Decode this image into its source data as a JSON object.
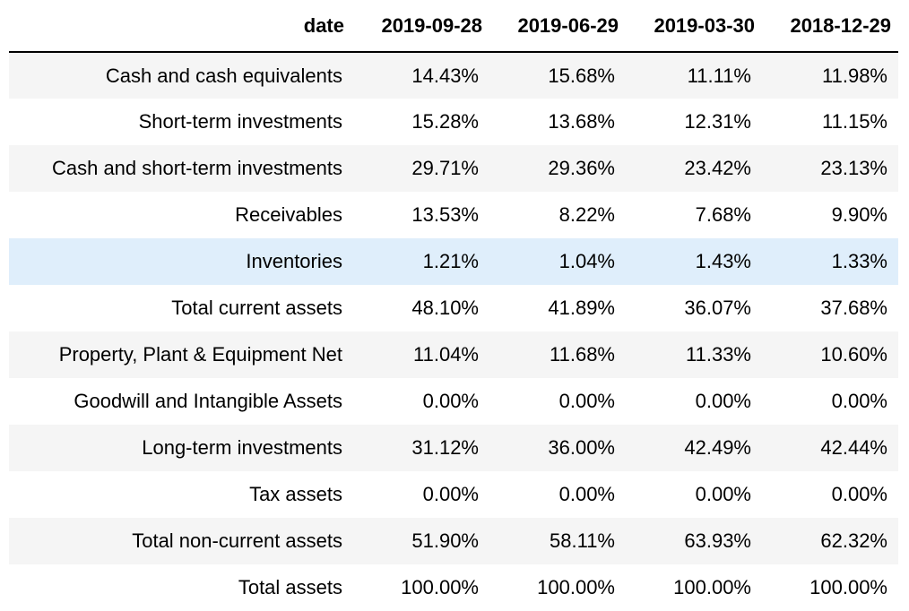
{
  "table": {
    "header": [
      "date",
      "2019-09-28",
      "2019-06-29",
      "2019-03-30",
      "2018-12-29"
    ],
    "highlight_color": "#dfeefb",
    "stripe_color": "#f5f5f5",
    "rows": [
      {
        "label": "Cash and cash equivalents",
        "values": [
          "14.43%",
          "15.68%",
          "11.11%",
          "11.98%"
        ]
      },
      {
        "label": "Short-term investments",
        "values": [
          "15.28%",
          "13.68%",
          "12.31%",
          "11.15%"
        ]
      },
      {
        "label": "Cash and short-term investments",
        "values": [
          "29.71%",
          "29.36%",
          "23.42%",
          "23.13%"
        ]
      },
      {
        "label": "Receivables",
        "values": [
          "13.53%",
          "8.22%",
          "7.68%",
          "9.90%"
        ]
      },
      {
        "label": "Inventories",
        "values": [
          "1.21%",
          "1.04%",
          "1.43%",
          "1.33%"
        ]
      },
      {
        "label": "Total current assets",
        "values": [
          "48.10%",
          "41.89%",
          "36.07%",
          "37.68%"
        ]
      },
      {
        "label": "Property, Plant & Equipment Net",
        "values": [
          "11.04%",
          "11.68%",
          "11.33%",
          "10.60%"
        ]
      },
      {
        "label": "Goodwill and Intangible Assets",
        "values": [
          "0.00%",
          "0.00%",
          "0.00%",
          "0.00%"
        ]
      },
      {
        "label": "Long-term investments",
        "values": [
          "31.12%",
          "36.00%",
          "42.49%",
          "42.44%"
        ]
      },
      {
        "label": "Tax assets",
        "values": [
          "0.00%",
          "0.00%",
          "0.00%",
          "0.00%"
        ]
      },
      {
        "label": "Total non-current assets",
        "values": [
          "51.90%",
          "58.11%",
          "63.93%",
          "62.32%"
        ]
      },
      {
        "label": "Total assets",
        "values": [
          "100.00%",
          "100.00%",
          "100.00%",
          "100.00%"
        ]
      }
    ]
  }
}
